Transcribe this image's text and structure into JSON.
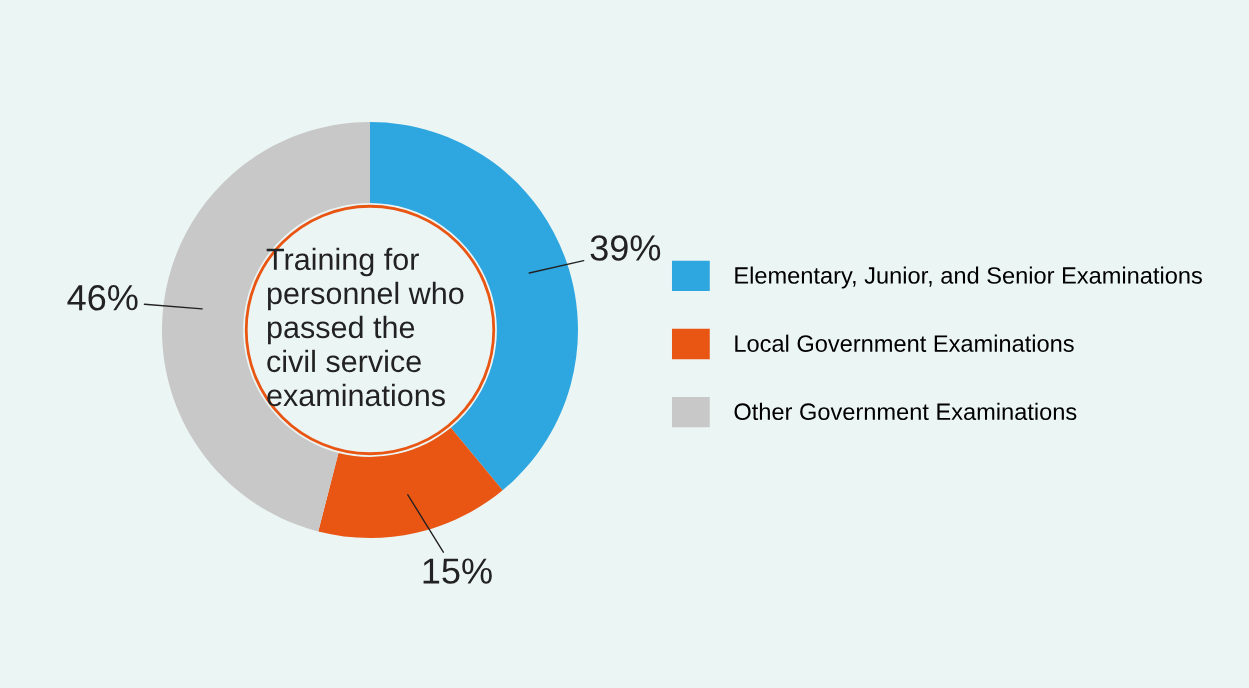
{
  "chart_data": {
    "type": "donut",
    "title": "Training for\npersonnel who\npassed the\ncivil service\nexaminations",
    "categories": [
      "Elementary, Junior, and Senior Examinations",
      "Local Government Examinations",
      "Other Government Examinations"
    ],
    "values": [
      39,
      15,
      46
    ],
    "colors": [
      "#2ea6e0",
      "#e95513",
      "#c8c8c8"
    ],
    "value_labels": [
      "39%",
      "15%",
      "46%"
    ],
    "legend": "right"
  }
}
